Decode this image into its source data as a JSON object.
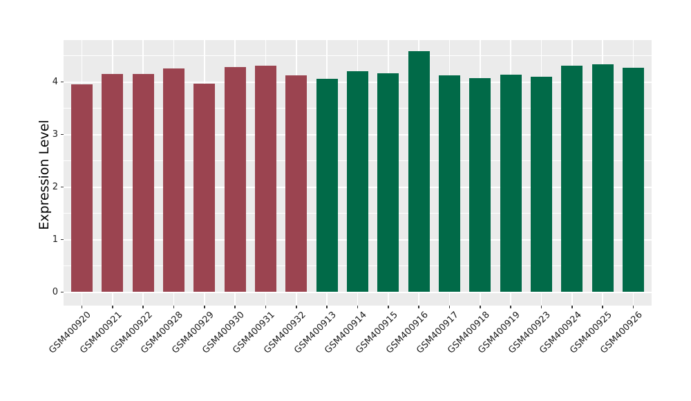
{
  "chart_data": {
    "type": "bar",
    "title": "",
    "xlabel": "",
    "ylabel": "Expression Level",
    "ylim": [
      0,
      4.8
    ],
    "yticks": [
      0,
      1,
      2,
      3,
      4
    ],
    "grid": true,
    "legend_position": "none",
    "categories": [
      "GSM400920",
      "GSM400921",
      "GSM400922",
      "GSM400928",
      "GSM400929",
      "GSM400930",
      "GSM400931",
      "GSM400932",
      "GSM400913",
      "GSM400914",
      "GSM400915",
      "GSM400916",
      "GSM400917",
      "GSM400918",
      "GSM400919",
      "GSM400923",
      "GSM400924",
      "GSM400925",
      "GSM400926"
    ],
    "values": [
      3.95,
      4.15,
      4.15,
      4.26,
      3.97,
      4.28,
      4.31,
      4.13,
      4.06,
      4.2,
      4.16,
      4.58,
      4.13,
      4.07,
      4.14,
      4.1,
      4.31,
      4.34,
      4.27
    ],
    "bar_groups": [
      "group1",
      "group1",
      "group1",
      "group1",
      "group1",
      "group1",
      "group1",
      "group1",
      "group2",
      "group2",
      "group2",
      "group2",
      "group2",
      "group2",
      "group2",
      "group2",
      "group2",
      "group2",
      "group2"
    ],
    "group_colors": {
      "group1": "#9B4450",
      "group2": "#016A48"
    },
    "panel_bg": "#EBEBEB",
    "grid_color": "#FFFFFF",
    "axis_text_color": "#1A1A1A",
    "tick_mark_color": "#333333"
  }
}
